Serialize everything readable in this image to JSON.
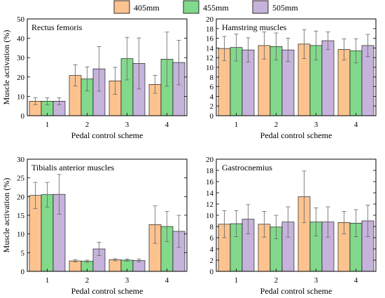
{
  "legend": [
    {
      "name": "405mm",
      "color": "#FDC38F"
    },
    {
      "name": "455mm",
      "color": "#82D98C"
    },
    {
      "name": "505mm",
      "color": "#C6B3DB"
    }
  ],
  "chart_data": [
    {
      "type": "bar",
      "title": "Rectus femoris",
      "xlabel": "Pedal control scheme",
      "ylabel": "Muscle activation (%)",
      "categories": [
        "1",
        "2",
        "3",
        "4"
      ],
      "ylim": [
        0,
        50
      ],
      "yticks": [
        0,
        10,
        20,
        30,
        40,
        50
      ],
      "series": [
        {
          "name": "405mm",
          "values": [
            7.5,
            20.8,
            18.0,
            16.2
          ],
          "errors": [
            1.8,
            5.5,
            7.0,
            4.6
          ]
        },
        {
          "name": "455mm",
          "values": [
            7.5,
            19.0,
            29.5,
            29.2
          ],
          "errors": [
            1.8,
            6.2,
            11.0,
            14.0
          ]
        },
        {
          "name": "505mm",
          "values": [
            7.5,
            24.2,
            27.0,
            27.5
          ],
          "errors": [
            1.8,
            11.5,
            13.2,
            11.5
          ]
        }
      ]
    },
    {
      "type": "bar",
      "title": "Hamstring muscles",
      "xlabel": "Pedal control scheme",
      "ylabel": "",
      "categories": [
        "1",
        "2",
        "3",
        "4"
      ],
      "ylim": [
        0,
        20
      ],
      "yticks": [
        0,
        2,
        4,
        6,
        8,
        10,
        12,
        14,
        16,
        18,
        20
      ],
      "series": [
        {
          "name": "405mm",
          "values": [
            13.9,
            14.5,
            14.8,
            13.7
          ],
          "errors": [
            2.5,
            2.8,
            3.0,
            2.2
          ]
        },
        {
          "name": "455mm",
          "values": [
            14.1,
            14.3,
            14.5,
            13.4
          ],
          "errors": [
            2.8,
            2.8,
            3.0,
            2.5
          ]
        },
        {
          "name": "505mm",
          "values": [
            13.6,
            13.6,
            15.5,
            14.5
          ],
          "errors": [
            2.5,
            2.4,
            1.8,
            2.3
          ]
        }
      ]
    },
    {
      "type": "bar",
      "title": "Tibialis anterior muscles",
      "xlabel": "Pedal control scheme",
      "ylabel": "Muscle activation (%)",
      "categories": [
        "1",
        "2",
        "3",
        "4"
      ],
      "ylim": [
        0,
        30
      ],
      "yticks": [
        0,
        5,
        10,
        15,
        20,
        25,
        30
      ],
      "series": [
        {
          "name": "405mm",
          "values": [
            20.3,
            2.8,
            3.1,
            12.5
          ],
          "errors": [
            3.5,
            0.3,
            0.3,
            5.0
          ]
        },
        {
          "name": "455mm",
          "values": [
            20.5,
            2.7,
            3.0,
            12.0
          ],
          "errors": [
            3.3,
            0.3,
            0.3,
            4.0
          ]
        },
        {
          "name": "505mm",
          "values": [
            20.6,
            6.0,
            2.9,
            10.7
          ],
          "errors": [
            5.3,
            1.8,
            0.4,
            4.3
          ]
        }
      ]
    },
    {
      "type": "bar",
      "title": "Gastrocnemius",
      "xlabel": "Pedal control scheme",
      "ylabel": "",
      "categories": [
        "1",
        "2",
        "3",
        "4"
      ],
      "ylim": [
        0,
        20
      ],
      "yticks": [
        0,
        2,
        4,
        6,
        8,
        10,
        12,
        14,
        16,
        18,
        20
      ],
      "series": [
        {
          "name": "405mm",
          "values": [
            8.4,
            8.4,
            13.3,
            8.7
          ],
          "errors": [
            2.4,
            2.3,
            4.6,
            2.0
          ]
        },
        {
          "name": "455mm",
          "values": [
            8.5,
            7.9,
            8.8,
            8.6
          ],
          "errors": [
            2.3,
            2.1,
            2.5,
            2.4
          ]
        },
        {
          "name": "505mm",
          "values": [
            9.3,
            8.8,
            8.8,
            9.0
          ],
          "errors": [
            2.6,
            2.7,
            2.7,
            2.8
          ]
        }
      ]
    }
  ]
}
